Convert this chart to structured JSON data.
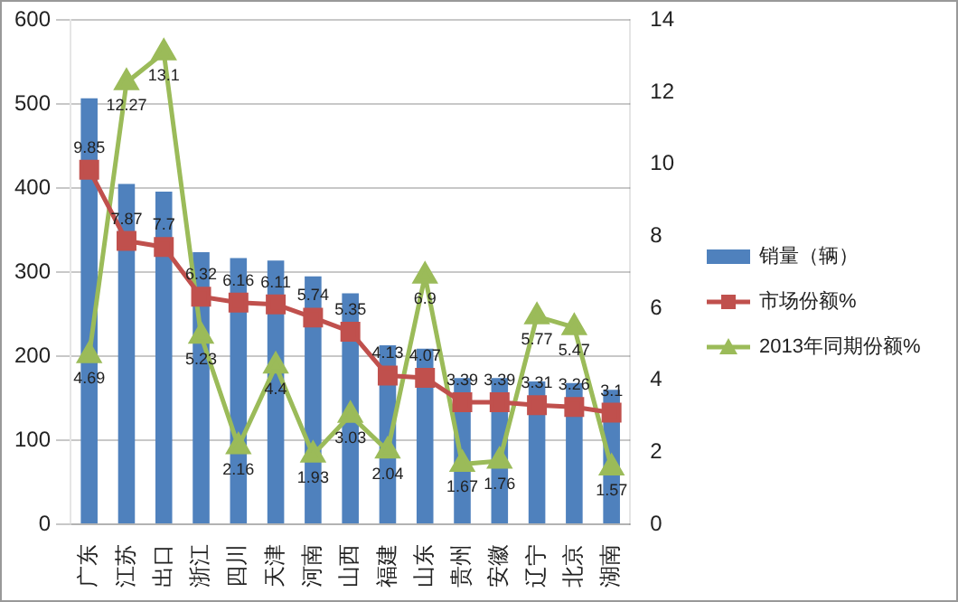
{
  "chart_data": {
    "type": "bar",
    "categories": [
      "广东",
      "江苏",
      "出口",
      "浙江",
      "四川",
      "天津",
      "河南",
      "山西",
      "福建",
      "山东",
      "贵州",
      "安徽",
      "辽宁",
      "北京",
      "湖南"
    ],
    "series": [
      {
        "name": "销量（辆）",
        "color": "#4f81bd",
        "values": [
          507,
          405,
          396,
          324,
          317,
          314,
          295,
          275,
          213,
          209,
          174,
          174,
          170,
          168,
          160
        ]
      },
      {
        "name": "市场份额%",
        "type": "line",
        "axis": "y2",
        "marker": "square",
        "data_labels": true,
        "color": "#c0504d",
        "values": [
          9.85,
          7.87,
          7.7,
          6.32,
          6.16,
          6.11,
          5.74,
          5.35,
          4.13,
          4.07,
          3.39,
          3.39,
          3.31,
          3.26,
          3.1
        ]
      },
      {
        "name": "2013年同期份额%",
        "type": "line",
        "axis": "y2",
        "marker": "triangle",
        "data_labels": true,
        "color": "#9bbb59",
        "values": [
          4.69,
          12.27,
          13.1,
          5.23,
          2.16,
          4.4,
          1.93,
          3.03,
          2.04,
          6.9,
          1.67,
          1.76,
          5.77,
          5.47,
          1.57
        ]
      }
    ],
    "ylim": [
      0,
      600
    ],
    "yticks": [
      0,
      100,
      200,
      300,
      400,
      500,
      600
    ],
    "y2lim": [
      0,
      14
    ],
    "y2ticks": [
      0,
      2,
      4,
      6,
      8,
      10,
      12,
      14
    ],
    "grid": "y",
    "legend": "right"
  }
}
